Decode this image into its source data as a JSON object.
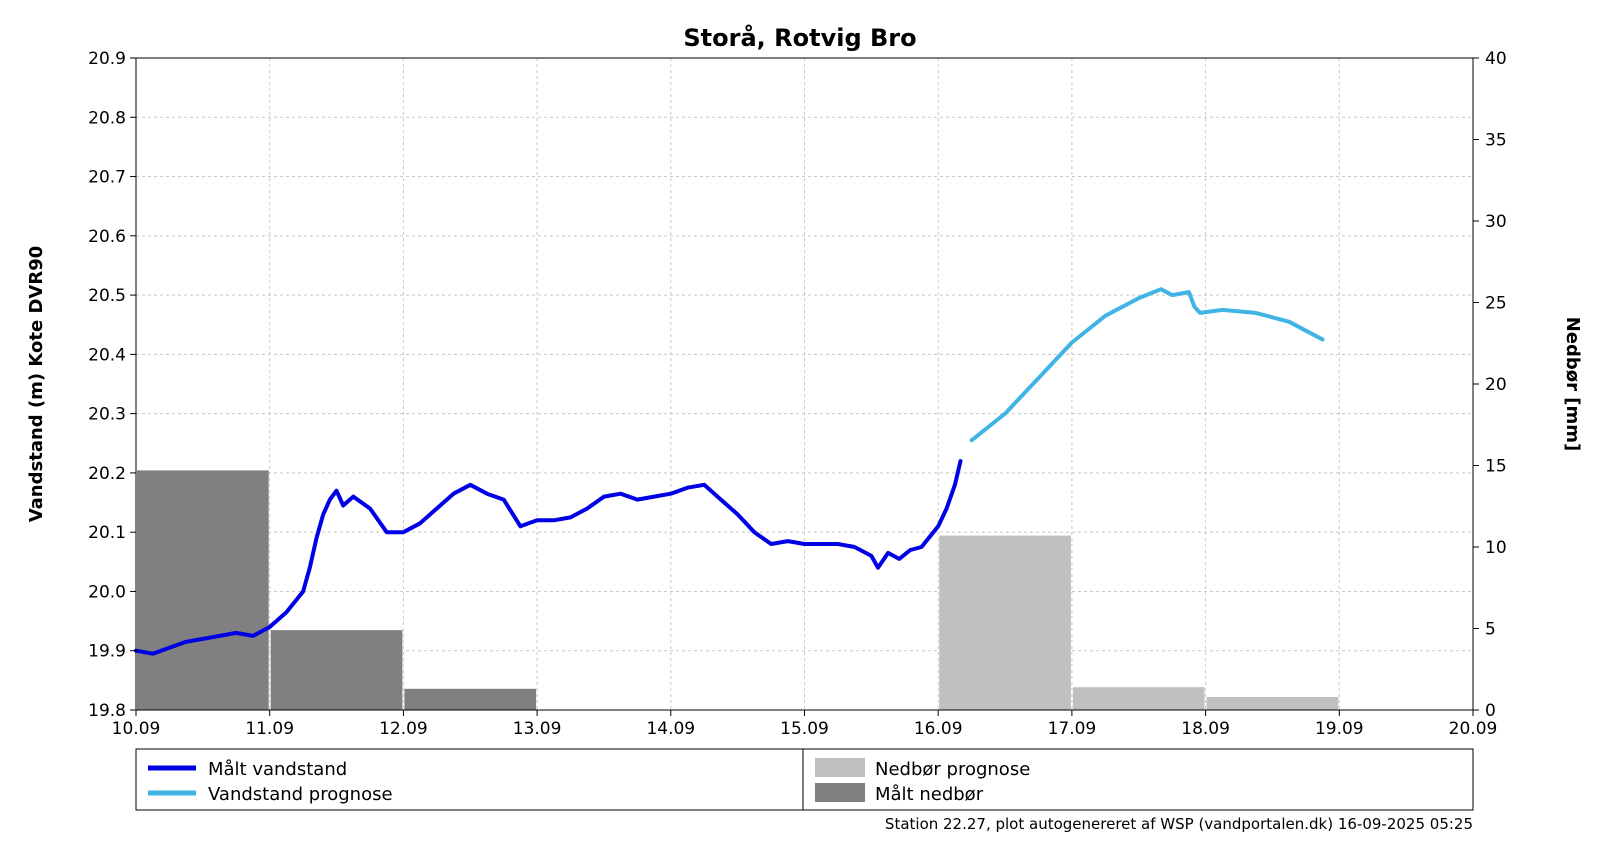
{
  "chart_data": {
    "type": "line",
    "title": "Storå, Rotvig Bro",
    "ylabel": "Vandstand (m) Kote DVR90",
    "y2label": "Nedbør [mm]",
    "xlabel": "",
    "xlim": [
      "2025-09-10",
      "2025-09-20"
    ],
    "ylim": [
      19.8,
      20.9
    ],
    "y2lim": [
      0,
      40
    ],
    "grid": true,
    "legend_position": "bottom",
    "x_ticks": [
      "10.09",
      "11.09",
      "12.09",
      "13.09",
      "14.09",
      "15.09",
      "16.09",
      "17.09",
      "18.09",
      "19.09",
      "20.09"
    ],
    "y_ticks": [
      "19.8",
      "19.9",
      "20.0",
      "20.1",
      "20.2",
      "20.3",
      "20.4",
      "20.5",
      "20.6",
      "20.7",
      "20.8",
      "20.9"
    ],
    "y2_ticks": [
      "0",
      "5",
      "10",
      "15",
      "20",
      "25",
      "30",
      "35",
      "40"
    ],
    "series": [
      {
        "name": "Målt vandstand",
        "type": "line",
        "axis": "left",
        "color": "#0000e6",
        "x": [
          "2025-09-10 00:00",
          "2025-09-10 03:00",
          "2025-09-10 06:00",
          "2025-09-10 09:00",
          "2025-09-10 12:00",
          "2025-09-10 15:00",
          "2025-09-10 18:00",
          "2025-09-10 21:00",
          "2025-09-11 00:00",
          "2025-09-11 03:00",
          "2025-09-11 06:00",
          "2025-09-11 07:12",
          "2025-09-11 08:24",
          "2025-09-11 09:36",
          "2025-09-11 10:48",
          "2025-09-11 12:00",
          "2025-09-11 13:12",
          "2025-09-11 15:00",
          "2025-09-11 18:00",
          "2025-09-11 21:00",
          "2025-09-12 00:00",
          "2025-09-12 03:00",
          "2025-09-12 06:00",
          "2025-09-12 09:00",
          "2025-09-12 12:00",
          "2025-09-12 15:00",
          "2025-09-12 18:00",
          "2025-09-12 21:00",
          "2025-09-13 00:00",
          "2025-09-13 03:00",
          "2025-09-13 06:00",
          "2025-09-13 09:00",
          "2025-09-13 12:00",
          "2025-09-13 15:00",
          "2025-09-13 18:00",
          "2025-09-13 21:00",
          "2025-09-14 00:00",
          "2025-09-14 03:00",
          "2025-09-14 06:00",
          "2025-09-14 09:00",
          "2025-09-14 12:00",
          "2025-09-14 15:00",
          "2025-09-14 18:00",
          "2025-09-14 21:00",
          "2025-09-15 00:00",
          "2025-09-15 03:00",
          "2025-09-15 06:00",
          "2025-09-15 09:00",
          "2025-09-15 12:00",
          "2025-09-15 13:12",
          "2025-09-15 15:00",
          "2025-09-15 17:00",
          "2025-09-15 19:00",
          "2025-09-15 21:00",
          "2025-09-16 00:00",
          "2025-09-16 01:30",
          "2025-09-16 03:00",
          "2025-09-16 04:00"
        ],
        "values": [
          19.9,
          19.895,
          19.905,
          19.915,
          19.92,
          19.925,
          19.93,
          19.925,
          19.94,
          19.965,
          20.0,
          20.04,
          20.09,
          20.13,
          20.155,
          20.17,
          20.145,
          20.16,
          20.14,
          20.1,
          20.1,
          20.115,
          20.14,
          20.165,
          20.18,
          20.165,
          20.155,
          20.11,
          20.12,
          20.12,
          20.125,
          20.14,
          20.16,
          20.165,
          20.155,
          20.16,
          20.165,
          20.175,
          20.18,
          20.155,
          20.13,
          20.1,
          20.08,
          20.085,
          20.08,
          20.08,
          20.08,
          20.075,
          20.06,
          20.04,
          20.065,
          20.055,
          20.07,
          20.075,
          20.11,
          20.14,
          20.18,
          20.22
        ]
      },
      {
        "name": "Vandstand prognose",
        "type": "line",
        "axis": "left",
        "color": "#41b4e6",
        "x": [
          "2025-09-16 06:00",
          "2025-09-16 12:00",
          "2025-09-16 18:00",
          "2025-09-17 00:00",
          "2025-09-17 06:00",
          "2025-09-17 12:00",
          "2025-09-17 16:00",
          "2025-09-17 18:00",
          "2025-09-17 21:00",
          "2025-09-17 22:00",
          "2025-09-17 23:00",
          "2025-09-18 03:00",
          "2025-09-18 09:00",
          "2025-09-18 15:00",
          "2025-09-18 18:00",
          "2025-09-18 21:00"
        ],
        "values": [
          20.255,
          20.3,
          20.36,
          20.42,
          20.465,
          20.495,
          20.51,
          20.5,
          20.505,
          20.48,
          20.47,
          20.475,
          20.47,
          20.455,
          20.44,
          20.425
        ]
      },
      {
        "name": "Målt nedbør",
        "type": "bar",
        "axis": "right",
        "color": "#808080",
        "days": [
          "10.09",
          "11.09",
          "12.09"
        ],
        "values": [
          14.7,
          4.9,
          1.3
        ]
      },
      {
        "name": "Nedbør prognose",
        "type": "bar",
        "axis": "right",
        "color": "#c0c0c0",
        "days": [
          "16.09",
          "17.09",
          "18.09"
        ],
        "values": [
          10.7,
          1.4,
          0.8
        ]
      }
    ],
    "footer": "Station 22.27, plot autogenereret af WSP (vandportalen.dk) 16-09-2025 05:25"
  }
}
